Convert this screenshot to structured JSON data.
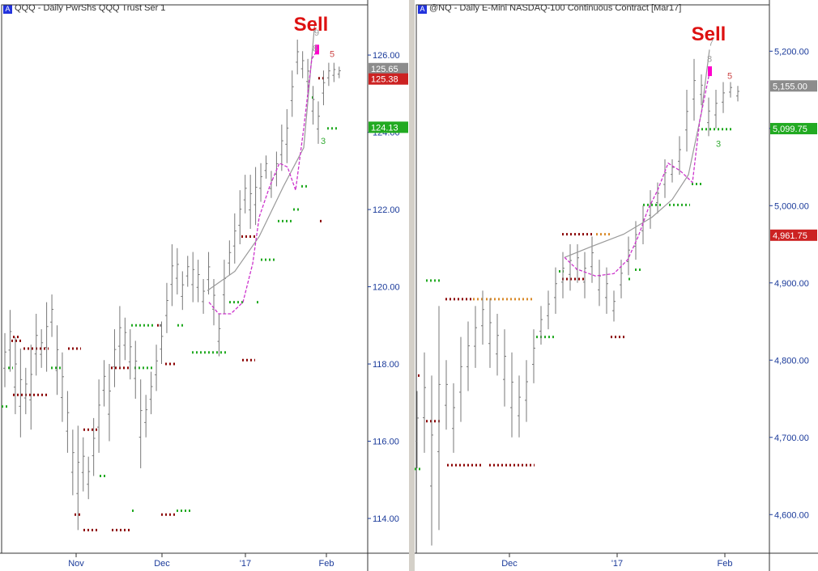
{
  "chart_data": [
    {
      "type": "ohlc",
      "title_symbol": "QQQ",
      "title": "QQQ - Daily  PwrShs QQQ Trust Ser 1",
      "annotation": "Sell",
      "y_ticks": [
        "126.00",
        "124.00",
        "122.00",
        "120.00",
        "118.00",
        "116.00",
        "114.00"
      ],
      "y_tick_values": [
        126,
        124,
        122,
        120,
        118,
        116,
        114
      ],
      "ylim": [
        113.1,
        127.3
      ],
      "x_ticks": [
        "Nov",
        "Dec",
        "'17",
        "Feb"
      ],
      "price_badges": [
        {
          "label": "125.65",
          "value": 125.65,
          "color": "#8c8c8c"
        },
        {
          "label": "125.38",
          "value": 125.38,
          "color": "#cc2222"
        },
        {
          "label": "124.13",
          "value": 124.13,
          "color": "#22aa22"
        }
      ],
      "count_labels": [
        {
          "label": "9",
          "value": 126.5,
          "color": "#999999"
        },
        {
          "label": "8",
          "value": 126.1,
          "color": "#999999"
        },
        {
          "label": "5",
          "value": 125.95,
          "color": "#cc4444"
        },
        {
          "label": "3",
          "value": 123.7,
          "color": "#33aa33"
        }
      ],
      "bars": [
        [
          118.8,
          117.4
        ],
        [
          119.4,
          117.8
        ],
        [
          118.7,
          116.7
        ],
        [
          118.4,
          116.1
        ],
        [
          117.9,
          116.7
        ],
        [
          118.5,
          116.3
        ],
        [
          119.3,
          117.7
        ],
        [
          118.9,
          117.9
        ],
        [
          119.6,
          117.8
        ],
        [
          119.8,
          118.7
        ],
        [
          119.0,
          117.2
        ],
        [
          118.3,
          116.5
        ],
        [
          117.3,
          115.7
        ],
        [
          116.3,
          114.6
        ],
        [
          116.4,
          113.7
        ],
        [
          116.1,
          114.7
        ],
        [
          115.6,
          114.5
        ],
        [
          116.6,
          115.1
        ],
        [
          117.6,
          115.7
        ],
        [
          118.1,
          116.9
        ],
        [
          118.0,
          116.0
        ],
        [
          118.9,
          117.4
        ],
        [
          119.5,
          117.9
        ],
        [
          119.2,
          118.1
        ],
        [
          118.9,
          117.6
        ],
        [
          118.6,
          117.1
        ],
        [
          117.6,
          115.3
        ],
        [
          117.2,
          116.1
        ],
        [
          117.8,
          116.7
        ],
        [
          118.5,
          117.3
        ],
        [
          119.1,
          118.0
        ],
        [
          120.1,
          118.8
        ],
        [
          121.1,
          119.5
        ],
        [
          121.0,
          119.8
        ],
        [
          120.4,
          119.4
        ],
        [
          120.8,
          120.0
        ],
        [
          120.9,
          119.6
        ],
        [
          120.7,
          119.6
        ],
        [
          120.2,
          119.3
        ],
        [
          120.9,
          119.8
        ],
        [
          120.2,
          119.0
        ],
        [
          119.3,
          118.2
        ],
        [
          120.7,
          119.3
        ],
        [
          121.2,
          120.3
        ],
        [
          121.9,
          120.6
        ],
        [
          122.5,
          121.1
        ],
        [
          122.9,
          121.9
        ],
        [
          122.9,
          121.5
        ],
        [
          123.1,
          121.6
        ],
        [
          123.2,
          122.2
        ],
        [
          123.4,
          122.8
        ],
        [
          123.0,
          122.3
        ],
        [
          123.5,
          122.6
        ],
        [
          124.2,
          123.0
        ],
        [
          124.6,
          123.2
        ],
        [
          125.6,
          124.4
        ],
        [
          126.4,
          125.5
        ],
        [
          126.1,
          125.4
        ],
        [
          125.9,
          125.0
        ],
        [
          125.2,
          124.2
        ],
        [
          124.8,
          123.7
        ],
        [
          125.6,
          124.7
        ],
        [
          125.8,
          125.2
        ],
        [
          125.8,
          125.3
        ],
        [
          125.7,
          125.4
        ]
      ],
      "dot_lines": [
        {
          "value": 118.6,
          "x_range": [
            14,
            26
          ],
          "color": "#8b0000"
        },
        {
          "value": 118.4,
          "x_range": [
            29,
            60
          ],
          "color": "#8b0000"
        },
        {
          "value": 118.4,
          "x_range": [
            84,
            100
          ],
          "color": "#8b0000"
        },
        {
          "value": 117.2,
          "x_range": [
            16,
            60
          ],
          "color": "#8b0000"
        },
        {
          "value": 116.9,
          "x_range": [
            2,
            10
          ],
          "color": "#22aa22"
        },
        {
          "value": 117.9,
          "x_range": [
            10,
            16
          ],
          "color": "#22aa22"
        },
        {
          "value": 117.9,
          "x_range": [
            63,
            76
          ],
          "color": "#22aa22"
        },
        {
          "value": 116.3,
          "x_range": [
            103,
            120
          ],
          "color": "#8b0000"
        },
        {
          "value": 114.1,
          "x_range": [
            92,
            102
          ],
          "color": "#8b0000"
        },
        {
          "value": 113.7,
          "x_range": [
            103,
            121
          ],
          "color": "#8b0000"
        },
        {
          "value": 113.7,
          "x_range": [
            138,
            160
          ],
          "color": "#8b0000"
        },
        {
          "value": 115.1,
          "x_range": [
            123,
            133
          ],
          "color": "#22aa22"
        },
        {
          "value": 114.2,
          "x_range": [
            163,
            166
          ],
          "color": "#22aa22"
        },
        {
          "value": 117.9,
          "x_range": [
            137,
            160
          ],
          "color": "#8b0000"
        },
        {
          "value": 117.9,
          "x_range": [
            166,
            188
          ],
          "color": "#22aa22"
        },
        {
          "value": 119.0,
          "x_range": [
            162,
            190
          ],
          "color": "#22aa22"
        },
        {
          "value": 119.0,
          "x_range": [
            194,
            200
          ],
          "color": "#8b0000"
        },
        {
          "value": 118.0,
          "x_range": [
            204,
            217
          ],
          "color": "#8b0000"
        },
        {
          "value": 114.1,
          "x_range": [
            199,
            217
          ],
          "color": "#8b0000"
        },
        {
          "value": 114.2,
          "x_range": [
            218,
            236
          ],
          "color": "#22aa22"
        },
        {
          "value": 119.0,
          "x_range": [
            219,
            226
          ],
          "color": "#22aa22"
        },
        {
          "value": 119.0,
          "x_range": [
            197,
            200
          ],
          "color": "#888888"
        },
        {
          "value": 118.3,
          "x_range": [
            237,
            281
          ],
          "color": "#22aa22"
        },
        {
          "value": 119.6,
          "x_range": [
            283,
            300
          ],
          "color": "#22aa22"
        },
        {
          "value": 119.6,
          "x_range": [
            317,
            321
          ],
          "color": "#22aa22"
        },
        {
          "value": 118.1,
          "x_range": [
            299,
            315
          ],
          "color": "#8b0000"
        },
        {
          "value": 121.3,
          "x_range": [
            298,
            316
          ],
          "color": "#8b0000"
        },
        {
          "value": 120.7,
          "x_range": [
            322,
            341
          ],
          "color": "#22aa22"
        },
        {
          "value": 121.7,
          "x_range": [
            343,
            362
          ],
          "color": "#22aa22"
        },
        {
          "value": 122.0,
          "x_range": [
            362,
            369
          ],
          "color": "#22aa22"
        },
        {
          "value": 122.6,
          "x_range": [
            372,
            381
          ],
          "color": "#22aa22"
        },
        {
          "value": 121.7,
          "x_range": [
            395,
            400
          ],
          "color": "#8b0000"
        },
        {
          "value": 125.4,
          "x_range": [
            393,
            403
          ],
          "color": "#8b0000"
        },
        {
          "value": 124.9,
          "x_range": [
            385,
            390
          ],
          "color": "#22aa22"
        },
        {
          "value": 124.1,
          "x_range": [
            404,
            416
          ],
          "color": "#22aa22"
        },
        {
          "value": 118.7,
          "x_range": [
            16,
            26
          ],
          "color": "#8b0000"
        }
      ],
      "trend_gray": [
        [
          256,
          119.9
        ],
        [
          290,
          120.4
        ],
        [
          320,
          121.3
        ],
        [
          350,
          122.6
        ],
        [
          375,
          123.6
        ],
        [
          389,
          126.9
        ]
      ],
      "trend_magenta": [
        [
          258,
          119.6
        ],
        [
          270,
          119.3
        ],
        [
          285,
          119.3
        ],
        [
          300,
          119.6
        ],
        [
          312,
          120.6
        ],
        [
          320,
          121.8
        ],
        [
          333,
          122.6
        ],
        [
          345,
          123.2
        ],
        [
          355,
          123.1
        ],
        [
          365,
          122.5
        ],
        [
          375,
          124.1
        ],
        [
          385,
          125.9
        ],
        [
          391,
          126.1
        ]
      ]
    },
    {
      "type": "ohlc",
      "title_symbol": "@NQ",
      "title": "@NQ - Daily  E-Mini NASDAQ-100 Continuous Contract [Mar17]",
      "annotation": "Sell",
      "y_ticks": [
        "5,200.00",
        "5,100.00",
        "5,000.00",
        "4,900.00",
        "4,800.00",
        "4,700.00",
        "4,600.00"
      ],
      "y_tick_values": [
        5200,
        5100,
        5000,
        4900,
        4800,
        4700,
        4600
      ],
      "ylim": [
        4550,
        5260
      ],
      "x_ticks": [
        "Dec",
        "'17",
        "Feb"
      ],
      "price_badges": [
        {
          "label": "5,155.00",
          "value": 5155.0,
          "color": "#8c8c8c"
        },
        {
          "label": "5,099.75",
          "value": 5099.75,
          "color": "#22aa22"
        },
        {
          "label": "4,961.75",
          "value": 4961.75,
          "color": "#cc2222"
        }
      ],
      "count_labels": [
        {
          "label": "7",
          "value": 5207,
          "color": "#999999"
        },
        {
          "label": "8",
          "value": 5186,
          "color": "#999999"
        },
        {
          "label": "5",
          "value": 5164,
          "color": "#cc4444"
        },
        {
          "label": "3",
          "value": 5076,
          "color": "#33aa33"
        }
      ],
      "bars": [
        [
          4760,
          4660
        ],
        [
          4810,
          4680
        ],
        [
          4780,
          4560
        ],
        [
          4870,
          4580
        ],
        [
          4800,
          4710
        ],
        [
          4770,
          4680
        ],
        [
          4830,
          4720
        ],
        [
          4850,
          4760
        ],
        [
          4870,
          4790
        ],
        [
          4890,
          4820
        ],
        [
          4880,
          4790
        ],
        [
          4860,
          4780
        ],
        [
          4840,
          4740
        ],
        [
          4810,
          4700
        ],
        [
          4780,
          4700
        ],
        [
          4800,
          4720
        ],
        [
          4840,
          4770
        ],
        [
          4870,
          4820
        ],
        [
          4890,
          4840
        ],
        [
          4920,
          4860
        ],
        [
          4940,
          4880
        ],
        [
          4950,
          4890
        ],
        [
          4950,
          4900
        ],
        [
          4940,
          4880
        ],
        [
          4960,
          4900
        ],
        [
          4930,
          4870
        ],
        [
          4920,
          4860
        ],
        [
          4890,
          4850
        ],
        [
          4930,
          4880
        ],
        [
          4960,
          4910
        ],
        [
          4980,
          4930
        ],
        [
          5000,
          4950
        ],
        [
          5020,
          4970
        ],
        [
          5030,
          4990
        ],
        [
          5060,
          5010
        ],
        [
          5060,
          5030
        ],
        [
          5090,
          5040
        ],
        [
          5150,
          5070
        ],
        [
          5190,
          5110
        ],
        [
          5170,
          5130
        ],
        [
          5140,
          5090
        ],
        [
          5150,
          5100
        ],
        [
          5160,
          5120
        ],
        [
          5160,
          5140
        ],
        [
          5155,
          5135
        ]
      ],
      "dot_lines": [
        {
          "value": 4903,
          "x_range": [
            526,
            546
          ],
          "color": "#22aa22"
        },
        {
          "value": 4879,
          "x_range": [
            550,
            582
          ],
          "color": "#8b0000"
        },
        {
          "value": 4879,
          "x_range": [
            584,
            598
          ],
          "color": "#d98b2b"
        },
        {
          "value": 4879,
          "x_range": [
            600,
            660
          ],
          "color": "#d98b2b"
        },
        {
          "value": 4664,
          "x_range": [
            552,
            596
          ],
          "color": "#8b0000"
        },
        {
          "value": 4664,
          "x_range": [
            604,
            660
          ],
          "color": "#8b0000"
        },
        {
          "value": 4659,
          "x_range": [
            512,
            519
          ],
          "color": "#22aa22"
        },
        {
          "value": 4721,
          "x_range": [
            526,
            546
          ],
          "color": "#8b0000"
        },
        {
          "value": 4780,
          "x_range": [
            516,
            520
          ],
          "color": "#8b0000"
        },
        {
          "value": 4830,
          "x_range": [
            662,
            684
          ],
          "color": "#22aa22"
        },
        {
          "value": 4963,
          "x_range": [
            694,
            734
          ],
          "color": "#8b0000"
        },
        {
          "value": 4963,
          "x_range": [
            736,
            756
          ],
          "color": "#d98b2b"
        },
        {
          "value": 4905,
          "x_range": [
            694,
            724
          ],
          "color": "#8b0000"
        },
        {
          "value": 4915,
          "x_range": [
            690,
            696
          ],
          "color": "#22aa22"
        },
        {
          "value": 4830,
          "x_range": [
            754,
            774
          ],
          "color": "#8b0000"
        },
        {
          "value": 4905,
          "x_range": [
            776,
            780
          ],
          "color": "#22aa22"
        },
        {
          "value": 4917,
          "x_range": [
            784,
            792
          ],
          "color": "#22aa22"
        },
        {
          "value": 5001,
          "x_range": [
            794,
            818
          ],
          "color": "#22aa22"
        },
        {
          "value": 5001,
          "x_range": [
            826,
            852
          ],
          "color": "#22aa22"
        },
        {
          "value": 5028,
          "x_range": [
            854,
            866
          ],
          "color": "#22aa22"
        },
        {
          "value": 5099,
          "x_range": [
            866,
            906
          ],
          "color": "#22aa22"
        }
      ],
      "trend_gray": [
        [
          697,
          4933
        ],
        [
          730,
          4947
        ],
        [
          770,
          4963
        ],
        [
          805,
          4985
        ],
        [
          830,
          5008
        ],
        [
          850,
          5040
        ],
        [
          866,
          5120
        ],
        [
          876,
          5202
        ]
      ],
      "trend_magenta": [
        [
          697,
          4933
        ],
        [
          712,
          4918
        ],
        [
          735,
          4909
        ],
        [
          758,
          4912
        ],
        [
          775,
          4930
        ],
        [
          788,
          4960
        ],
        [
          800,
          4995
        ],
        [
          812,
          5020
        ],
        [
          825,
          5055
        ],
        [
          840,
          5045
        ],
        [
          855,
          5030
        ],
        [
          864,
          5110
        ],
        [
          876,
          5172
        ]
      ]
    }
  ]
}
